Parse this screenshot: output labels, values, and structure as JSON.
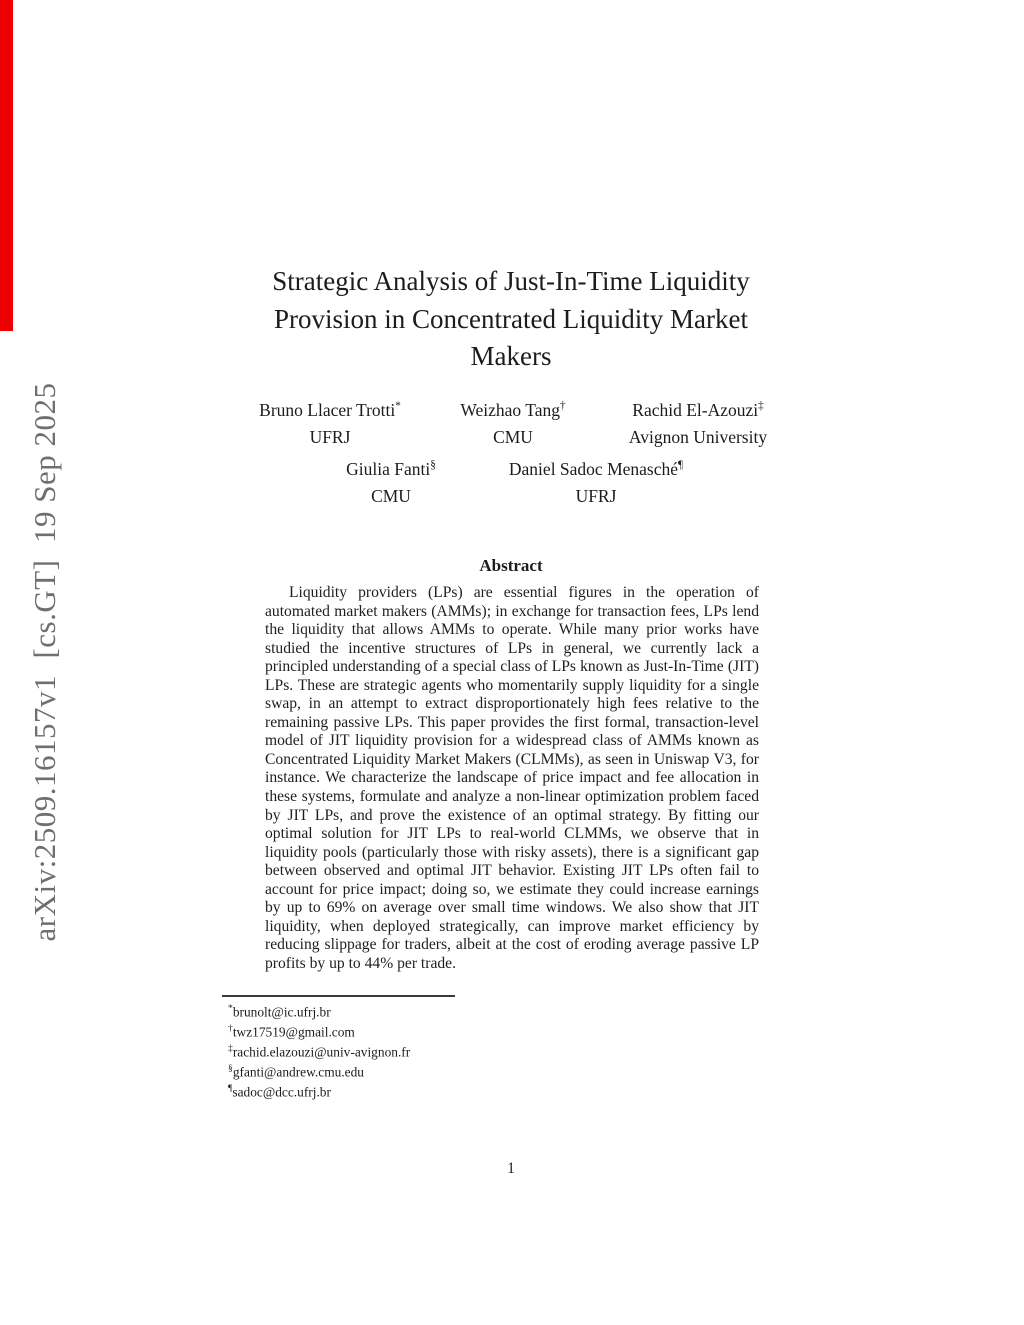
{
  "colors": {
    "red_bar": "#ee0000",
    "watermark_gray": "#6f6f6f",
    "text": "#1c1c1c"
  },
  "watermark": {
    "text": "arXiv:2509.16157v1  [cs.GT]  19 Sep 2025"
  },
  "title": {
    "lines": [
      "Strategic Analysis of Just-In-Time Liquidity",
      "Provision in Concentrated Liquidity Market",
      "Makers"
    ]
  },
  "authors": [
    {
      "name": "Bruno Llacer Trotti",
      "marker": "*",
      "affiliation": "UFRJ"
    },
    {
      "name": "Weizhao Tang",
      "marker": "†",
      "affiliation": "CMU"
    },
    {
      "name": "Rachid El-Azouzi",
      "marker": "‡",
      "affiliation": "Avignon University"
    },
    {
      "name": "Giulia Fanti",
      "marker": "§",
      "affiliation": "CMU"
    },
    {
      "name": "Daniel Sadoc Menasché",
      "marker": "¶",
      "affiliation": "UFRJ"
    }
  ],
  "abstract": {
    "heading": "Abstract",
    "text": "Liquidity providers (LPs) are essential figures in the operation of automated market makers (AMMs); in exchange for transaction fees, LPs lend the liquidity that allows AMMs to operate. While many prior works have studied the incentive structures of LPs in general, we currently lack a principled understanding of a special class of LPs known as Just-In-Time (JIT) LPs. These are strategic agents who momentarily supply liquidity for a single swap, in an attempt to extract disproportionately high fees relative to the remaining passive LPs. This paper provides the first formal, transaction-level model of JIT liquidity provision for a widespread class of AMMs known as Concentrated Liquidity Market Makers (CLMMs), as seen in Uniswap V3, for instance. We characterize the landscape of price impact and fee allocation in these systems, formulate and analyze a non-linear optimization problem faced by JIT LPs, and prove the existence of an optimal strategy. By fitting our optimal solution for JIT LPs to real-world CLMMs, we observe that in liquidity pools (particularly those with risky assets), there is a significant gap between observed and optimal JIT behavior. Existing JIT LPs often fail to account for price impact; doing so, we estimate they could increase earnings by up to 69% on average over small time windows. We also show that JIT liquidity, when deployed strategically, can improve market efficiency by reducing slippage for traders, albeit at the cost of eroding average passive LP profits by up to 44% per trade."
  },
  "footnotes": [
    {
      "marker": "*",
      "text": "brunolt@ic.ufrj.br"
    },
    {
      "marker": "†",
      "text": "twz17519@gmail.com"
    },
    {
      "marker": "‡",
      "text": "rachid.elazouzi@univ-avignon.fr"
    },
    {
      "marker": "§",
      "text": "gfanti@andrew.cmu.edu"
    },
    {
      "marker": "¶",
      "text": "sadoc@dcc.ufrj.br"
    }
  ],
  "page": {
    "number": "1"
  }
}
